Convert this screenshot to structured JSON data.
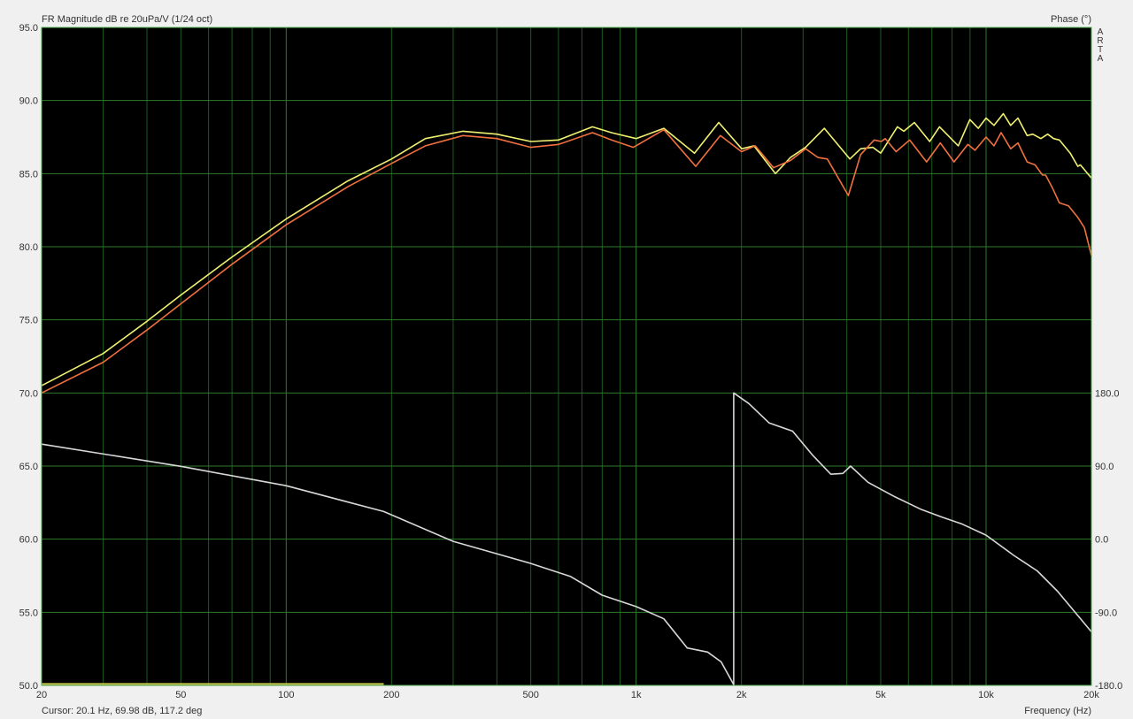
{
  "chart_data": {
    "type": "line",
    "title": "FR Magnitude dB re 20uPa/V (1/24 oct)",
    "y2label": "Phase (°)",
    "xlabel": "Frequency (Hz)",
    "cursor_readout": "Cursor: 20.1 Hz, 69.98 dB, 117.2 deg",
    "logo": "ARTA",
    "x_scale": "log",
    "xlim": [
      20,
      20000
    ],
    "ylim": [
      50,
      95
    ],
    "y2lim": [
      -180,
      180
    ],
    "y2_range_on_left_axis": [
      50,
      70
    ],
    "grid": true,
    "background": "#000000",
    "grid_color": "#1e5a1e",
    "x_ticks": [
      {
        "v": 20,
        "label": "20"
      },
      {
        "v": 50,
        "label": "50"
      },
      {
        "v": 100,
        "label": "100"
      },
      {
        "v": 200,
        "label": "200"
      },
      {
        "v": 500,
        "label": "500"
      },
      {
        "v": 1000,
        "label": "1k"
      },
      {
        "v": 2000,
        "label": "2k"
      },
      {
        "v": 5000,
        "label": "5k"
      },
      {
        "v": 10000,
        "label": "10k"
      },
      {
        "v": 20000,
        "label": "20k"
      }
    ],
    "y_ticks": [
      "95.0",
      "90.0",
      "85.0",
      "80.0",
      "75.0",
      "70.0",
      "65.0",
      "60.0",
      "55.0",
      "50.0"
    ],
    "y2_ticks": [
      "180.0",
      "90.0",
      "0.0",
      "-90.0",
      "-180.0"
    ],
    "series": [
      {
        "color": "#f0f070",
        "axis": "left",
        "x": [
          20,
          30,
          40,
          50,
          70,
          100,
          150,
          200,
          250,
          320,
          400,
          500,
          600,
          750,
          850,
          1000,
          1200,
          1468,
          1722,
          2003,
          2172,
          2500,
          2760,
          3050,
          3450,
          4080,
          4380,
          4750,
          5000,
          5580,
          5820,
          6240,
          6900,
          7360,
          8330,
          8990,
          9500,
          10000,
          10540,
          11200,
          11760,
          12330,
          13100,
          13600,
          14340,
          15000,
          15600,
          16200,
          17400,
          18300,
          18600,
          20000
        ],
        "y": [
          70.5,
          72.7,
          74.9,
          76.7,
          79.3,
          81.9,
          84.5,
          86.0,
          87.4,
          87.9,
          87.7,
          87.2,
          87.3,
          88.2,
          87.8,
          87.4,
          88.1,
          86.4,
          88.5,
          86.7,
          86.9,
          85.0,
          86.1,
          86.8,
          88.1,
          86.0,
          86.7,
          86.8,
          86.4,
          88.2,
          87.9,
          88.5,
          87.2,
          88.2,
          86.9,
          88.7,
          88.1,
          88.8,
          88.3,
          89.1,
          88.3,
          88.8,
          87.6,
          87.7,
          87.4,
          87.7,
          87.4,
          87.3,
          86.4,
          85.5,
          85.6,
          84.7
        ]
      },
      {
        "color": "#f07040",
        "axis": "left",
        "x": [
          20,
          30,
          40,
          50,
          70,
          100,
          150,
          200,
          250,
          320,
          400,
          500,
          600,
          750,
          850,
          982,
          1200,
          1480,
          1740,
          2000,
          2190,
          2470,
          2760,
          3050,
          3310,
          3520,
          4040,
          4380,
          4790,
          5020,
          5150,
          5530,
          6050,
          6760,
          7400,
          8100,
          8870,
          9300,
          10000,
          10540,
          11040,
          11760,
          12330,
          13100,
          13800,
          14500,
          14800,
          15500,
          16200,
          17200,
          18300,
          19100,
          20000
        ],
        "y": [
          70.0,
          72.1,
          74.3,
          76.1,
          78.8,
          81.5,
          84.1,
          85.7,
          86.9,
          87.6,
          87.4,
          86.8,
          87.0,
          87.8,
          87.3,
          86.8,
          88.0,
          85.5,
          87.6,
          86.5,
          86.9,
          85.4,
          85.9,
          86.7,
          86.1,
          86.0,
          83.5,
          86.3,
          87.3,
          87.2,
          87.4,
          86.5,
          87.3,
          85.8,
          87.1,
          85.8,
          87.0,
          86.6,
          87.5,
          86.9,
          87.8,
          86.7,
          87.1,
          85.8,
          85.6,
          84.9,
          84.9,
          84.0,
          83.0,
          82.8,
          82.0,
          81.3,
          79.4
        ]
      },
      {
        "color": "#d8d8d8",
        "axis": "right",
        "x": [
          20,
          50,
          100,
          190,
          300,
          500,
          650,
          800,
          1000,
          1200,
          1400,
          1600,
          1750,
          1900,
          1900.1,
          2100,
          2400,
          2800,
          3200,
          3600,
          3900,
          4100,
          4600,
          5500,
          6500,
          7500,
          8500,
          10000,
          12000,
          14000,
          16000,
          20000
        ],
        "y": [
          117,
          89.7,
          65.8,
          34,
          -2.7,
          -29.9,
          -46,
          -69,
          -83,
          -98,
          -134,
          -139,
          -151,
          -179,
          180,
          167,
          143,
          133,
          103,
          80,
          81,
          90,
          70,
          52,
          37,
          27,
          19,
          5,
          -20,
          -39,
          -64,
          -114
        ]
      }
    ],
    "marker_bar": {
      "color": "#c8c850",
      "x_from": 20,
      "x_to": 190,
      "y": 50.1
    }
  }
}
